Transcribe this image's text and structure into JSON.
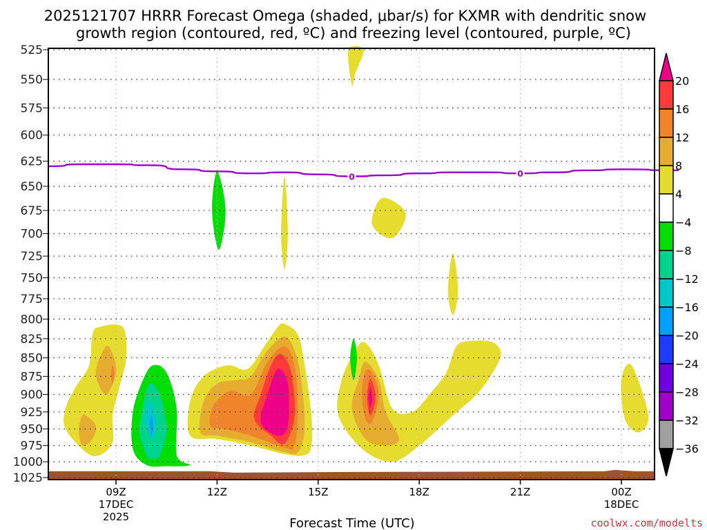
{
  "chart_data": {
    "type": "heatmap",
    "title": "2025121707 HRRR Forecast Omega (shaded, μbar/s) for KXMR with dendritic snow growth region (contoured, red, ºC) and freezing level (contoured, purple, ºC)",
    "title_lines": [
      "2025121707 HRRR Forecast Omega (shaded, μbar/s) for KXMR with dendritic snow",
      "growth region (contoured, red, ºC) and freezing level (contoured, purple, ºC)"
    ],
    "xlabel": "Forecast Time (UTC)",
    "ylabel": "",
    "credit": "coolwx.com/modelts",
    "x_units": "hours after 00Z 17DEC 2025",
    "xlim": [
      7,
      25.7
    ],
    "ylim": [
      1025,
      525
    ],
    "y_scale": "log-pressure (hPa)",
    "grid": true,
    "yticks": [
      525,
      550,
      575,
      600,
      625,
      650,
      675,
      700,
      725,
      750,
      775,
      800,
      825,
      850,
      875,
      900,
      925,
      950,
      975,
      1000,
      1025
    ],
    "xticks": [
      {
        "x": 9,
        "lines": [
          "09Z",
          "17DEC",
          "2025"
        ]
      },
      {
        "x": 12,
        "lines": [
          "12Z"
        ]
      },
      {
        "x": 15,
        "lines": [
          "15Z"
        ]
      },
      {
        "x": 18,
        "lines": [
          "18Z"
        ]
      },
      {
        "x": 21,
        "lines": [
          "21Z"
        ]
      },
      {
        "x": 24,
        "lines": [
          "00Z",
          "18DEC"
        ]
      }
    ],
    "colorbar": {
      "position": "right",
      "levels": [
        -36,
        -32,
        -28,
        -24,
        -20,
        -16,
        -12,
        -8,
        -4,
        4,
        8,
        12,
        16,
        20
      ],
      "labels": [
        "20",
        "16",
        "12",
        "8",
        "4",
        "−4",
        "−8",
        "−12",
        "−16",
        "−20",
        "−24",
        "−28",
        "−32",
        "−36"
      ],
      "bins": [
        {
          "range": ">20",
          "color": "#ee0088"
        },
        {
          "range": "16 to 20",
          "color": "#ff3a3a"
        },
        {
          "range": "12 to 16",
          "color": "#f0842a"
        },
        {
          "range": "8 to 12",
          "color": "#e5ac30"
        },
        {
          "range": "4 to 8",
          "color": "#e6dc30"
        },
        {
          "range": "-4 to 4",
          "color": "#ffffff"
        },
        {
          "range": "-8 to -4",
          "color": "#00dd00"
        },
        {
          "range": "-12 to -8",
          "color": "#00d38c"
        },
        {
          "range": "-16 to -12",
          "color": "#00c8c8"
        },
        {
          "range": "-20 to -16",
          "color": "#00a0ff"
        },
        {
          "range": "-24 to -20",
          "color": "#1e3cff"
        },
        {
          "range": "-28 to -24",
          "color": "#7000e0"
        },
        {
          "range": "-32 to -28",
          "color": "#a000c8"
        },
        {
          "range": "-36 to -32",
          "color": "#a0a0a0"
        },
        {
          "range": "<-36",
          "color": "#000000"
        }
      ]
    },
    "freezing_level": {
      "label": "0",
      "color": "#9a00c8",
      "points": [
        [
          7.0,
          630
        ],
        [
          8.0,
          628
        ],
        [
          9.0,
          628
        ],
        [
          10.0,
          629
        ],
        [
          11.0,
          633
        ],
        [
          12.0,
          635
        ],
        [
          13.0,
          637
        ],
        [
          14.0,
          636
        ],
        [
          15.0,
          638
        ],
        [
          16.0,
          640
        ],
        [
          17.0,
          639
        ],
        [
          18.0,
          637
        ],
        [
          19.0,
          636
        ],
        [
          20.0,
          636
        ],
        [
          21.0,
          637
        ],
        [
          22.0,
          636
        ],
        [
          23.0,
          634
        ],
        [
          24.0,
          633
        ],
        [
          25.7,
          634
        ]
      ],
      "label_x": [
        16.0,
        21.0
      ]
    },
    "omega_features": [
      {
        "name": "weak ascent 09Z column",
        "polygons": [
          {
            "level": 4,
            "pts": [
              [
                8.1,
                985
              ],
              [
                7.5,
                950
              ],
              [
                7.5,
                920
              ],
              [
                7.8,
                890
              ],
              [
                8.2,
                860
              ],
              [
                8.3,
                820
              ],
              [
                8.5,
                810
              ],
              [
                9.2,
                810
              ],
              [
                9.3,
                850
              ],
              [
                9.1,
                890
              ],
              [
                8.9,
                930
              ],
              [
                8.9,
                970
              ],
              [
                8.5,
                990
              ]
            ]
          },
          {
            "level": 8,
            "pts": [
              [
                8.7,
                835
              ],
              [
                8.4,
                870
              ],
              [
                8.7,
                900
              ],
              [
                9.0,
                870
              ],
              [
                8.9,
                845
              ]
            ]
          },
          {
            "level": 12,
            "pts": [
              [
                8.9,
                860
              ],
              [
                8.85,
                872
              ],
              [
                8.9,
                885
              ],
              [
                8.95,
                872
              ]
            ]
          },
          {
            "level": 8,
            "pts": [
              [
                8.0,
                930
              ],
              [
                7.9,
                950
              ],
              [
                8.0,
                975
              ],
              [
                8.3,
                965
              ],
              [
                8.4,
                945
              ],
              [
                8.1,
                930
              ]
            ]
          }
        ]
      },
      {
        "name": "descent 10Z",
        "polygons": [
          {
            "level": -4,
            "pts": [
              [
                9.9,
                1005
              ],
              [
                9.5,
                980
              ],
              [
                9.5,
                925
              ],
              [
                9.8,
                880
              ],
              [
                10.1,
                860
              ],
              [
                10.5,
                870
              ],
              [
                10.8,
                920
              ],
              [
                10.8,
                990
              ],
              [
                11.2,
                1005
              ],
              [
                10.5,
                1007
              ]
            ]
          },
          {
            "level": -8,
            "pts": [
              [
                9.9,
                990
              ],
              [
                9.7,
                955
              ],
              [
                9.8,
                915
              ],
              [
                10.0,
                885
              ],
              [
                10.3,
                900
              ],
              [
                10.5,
                950
              ],
              [
                10.3,
                990
              ],
              [
                10.1,
                995
              ]
            ]
          },
          {
            "level": -12,
            "pts": [
              [
                10.0,
                960
              ],
              [
                9.85,
                935
              ],
              [
                10.0,
                910
              ],
              [
                10.2,
                935
              ],
              [
                10.1,
                965
              ]
            ]
          },
          {
            "level": -16,
            "pts": [
              [
                10.05,
                930
              ],
              [
                10.0,
                945
              ],
              [
                10.05,
                960
              ],
              [
                10.1,
                945
              ]
            ]
          }
        ]
      },
      {
        "name": "strong ascent 13Z-15Z",
        "polygons": [
          {
            "level": 4,
            "pts": [
              [
                11.2,
                960
              ],
              [
                11.2,
                920
              ],
              [
                11.5,
                880
              ],
              [
                11.8,
                860
              ],
              [
                12.6,
                870
              ],
              [
                12.9,
                840
              ],
              [
                13.4,
                810
              ],
              [
                14.0,
                810
              ],
              [
                14.4,
                850
              ],
              [
                14.5,
                925
              ],
              [
                14.3,
                975
              ],
              [
                14.0,
                980
              ],
              [
                13.0,
                970
              ],
              [
                12.0,
                960
              ],
              [
                11.5,
                958
              ]
            ]
          }
        ]
      },
      {
        "name": "dynamic ascent main core",
        "polygons": [
          {
            "level": 4,
            "pts": [
              [
                11.3,
                960
              ],
              [
                11.3,
                915
              ],
              [
                11.7,
                878
              ],
              [
                12.6,
                872
              ],
              [
                13.1,
                860
              ],
              [
                13.6,
                820
              ],
              [
                14.0,
                808
              ],
              [
                14.3,
                800
              ],
              [
                14.5,
                820
              ],
              [
                14.8,
                850
              ],
              [
                15.0,
                890
              ],
              [
                15.0,
                980
              ],
              [
                14.0,
                990
              ],
              [
                12.0,
                965
              ]
            ]
          }
        ]
      }
    ],
    "ground_level_hpa": 1015
  }
}
